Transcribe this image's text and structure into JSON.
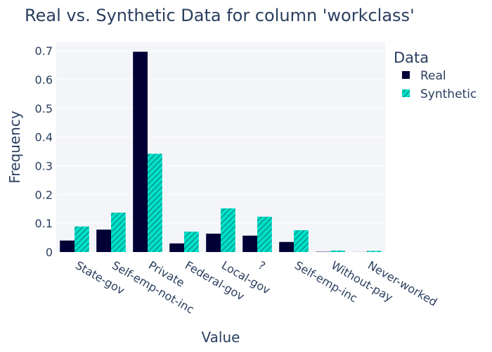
{
  "chart_data": {
    "type": "bar",
    "title": "Real vs. Synthetic Data for column 'workclass'",
    "xlabel": "Value",
    "ylabel": "Frequency",
    "ylim": [
      0,
      0.73
    ],
    "yticks": [
      0,
      0.1,
      0.2,
      0.3,
      0.4,
      0.5,
      0.6,
      0.7
    ],
    "ytick_labels": [
      "0",
      "0.1",
      "0.2",
      "0.3",
      "0.4",
      "0.5",
      "0.6",
      "0.7"
    ],
    "categories": [
      "State-gov",
      "Self-emp-not-inc",
      "Private",
      "Federal-gov",
      "Local-gov",
      "?",
      "Self-emp-inc",
      "Without-pay",
      "Never-worked"
    ],
    "legend_title": "Data",
    "legend_position": "right",
    "grid": true,
    "series": [
      {
        "name": "Real",
        "color": "#000036",
        "pattern": "solid",
        "values": [
          0.04,
          0.078,
          0.697,
          0.03,
          0.064,
          0.057,
          0.035,
          0.001,
          0.0002
        ]
      },
      {
        "name": "Synthetic",
        "color": "#01e0c9",
        "pattern": "hatch",
        "values": [
          0.089,
          0.137,
          0.342,
          0.071,
          0.152,
          0.123,
          0.076,
          0.005,
          0.004
        ]
      }
    ]
  }
}
